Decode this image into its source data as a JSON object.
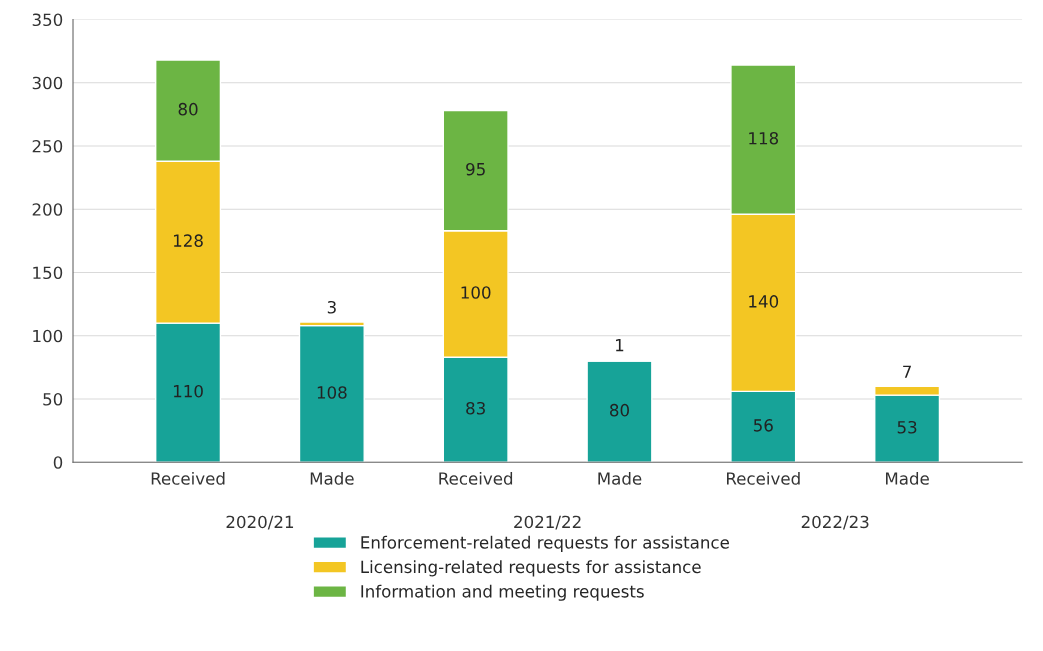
{
  "chart_data": {
    "type": "bar",
    "stacked": true,
    "categories": [
      "Received",
      "Made",
      "Received",
      "Made",
      "Received",
      "Made"
    ],
    "series": [
      {
        "name": "Enforcement-related requests for assistance",
        "color": "#17a398",
        "values": [
          110,
          108,
          83,
          80,
          56,
          53
        ]
      },
      {
        "name": "Licensing-related requests for assistance",
        "color": "#f3c623",
        "values": [
          128,
          3,
          100,
          1,
          140,
          7
        ]
      },
      {
        "name": "Information and meeting requests",
        "color": "#6cb544",
        "values": [
          80,
          null,
          95,
          null,
          118,
          null
        ]
      }
    ],
    "annotations": [
      "2020/21",
      "2021/22",
      "2022/23"
    ],
    "ylim": [
      0,
      350
    ],
    "yticks": [
      0,
      50,
      100,
      150,
      200,
      250,
      300,
      350
    ],
    "grid": "y",
    "legend": "bottom",
    "data_labels": true
  }
}
